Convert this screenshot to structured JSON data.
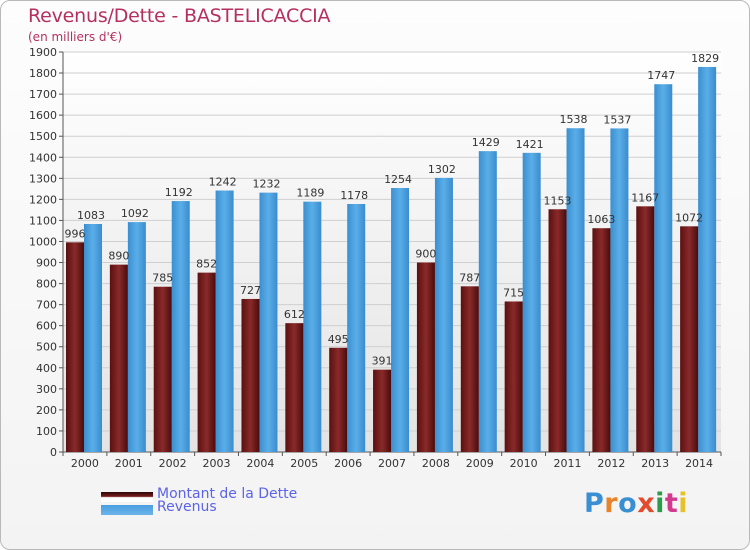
{
  "title": "Revenus/Dette - BASTELICACCIA",
  "subtitle": "(en milliers d'€)",
  "logo": {
    "text": "Proxiti",
    "colors": [
      "#3a8fd3",
      "#e7832a",
      "#3a8fd3",
      "#e34b2c",
      "#2a9c4a",
      "#d33a8e",
      "#e6c12a"
    ]
  },
  "legend": [
    {
      "label": "Montant de la Dette",
      "color": "#6e1818"
    },
    {
      "label": "Revenus",
      "color": "#4a9fdf"
    }
  ],
  "chart_data": {
    "type": "bar",
    "categories": [
      "2000",
      "2001",
      "2002",
      "2003",
      "2004",
      "2005",
      "2006",
      "2007",
      "2008",
      "2009",
      "2010",
      "2011",
      "2012",
      "2013",
      "2014"
    ],
    "series": [
      {
        "name": "Montant de la Dette",
        "color": "#7a1c1c",
        "values": [
          996,
          890,
          785,
          852,
          727,
          612,
          495,
          391,
          900,
          787,
          715,
          1153,
          1063,
          1167,
          1072
        ],
        "labels": [
          "996",
          "890",
          "785",
          "852",
          "727",
          "612",
          "495",
          "391",
          "900",
          "787",
          "715",
          "1153",
          "1063",
          "1167",
          "1072"
        ]
      },
      {
        "name": "Revenus",
        "color": "#4a9fdf",
        "values": [
          1083,
          1092,
          1192,
          1242,
          1232,
          1189,
          1178,
          1254,
          1302,
          1429,
          1421,
          1538,
          1537,
          1747,
          1829
        ],
        "labels": [
          "1083",
          "1092",
          "1192",
          "1242",
          "1232",
          "1189",
          "1178",
          "1254",
          "1302",
          "1429",
          "1421",
          "1538",
          "1537",
          "1747",
          "1829"
        ]
      }
    ],
    "ylim": [
      0,
      1900
    ],
    "yticks": [
      "0",
      "100",
      "200",
      "300",
      "400",
      "500",
      "600",
      "700",
      "800",
      "900",
      "1000",
      "1100",
      "1200",
      "1300",
      "1400",
      "1500",
      "1600",
      "1700",
      "1800",
      "1900"
    ],
    "grid": true
  }
}
